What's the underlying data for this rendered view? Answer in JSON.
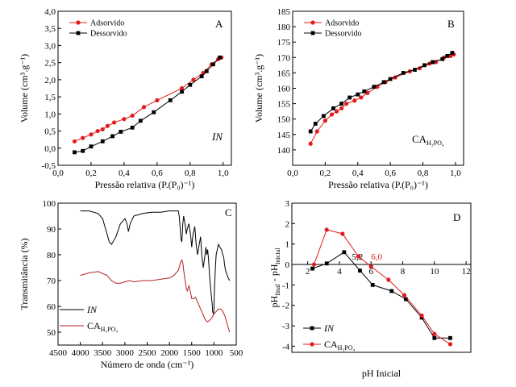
{
  "chart_data": [
    {
      "id": "A",
      "type": "line",
      "panel_letter": "A",
      "note": "IN",
      "ylabel_text": "Volume (cm³.g⁻¹)",
      "xlabel_text": "Pressão relativa (P.(P₀)⁻¹)",
      "xlim": [
        0,
        1.05
      ],
      "ylim": [
        -0.5,
        4.0
      ],
      "xticks": [
        "0,0",
        "0,2",
        "0,4",
        "0,6",
        "0,8",
        "1,0"
      ],
      "yticks": [
        "-0,5",
        "0,0",
        "0,5",
        "1,0",
        "1,5",
        "2,0",
        "2,5",
        "3,0",
        "3,5",
        "4,0"
      ],
      "legend": [
        "Adsorvido",
        "Dessorvido"
      ],
      "series": [
        {
          "name": "Adsorvido",
          "color": "#e41a1c",
          "marker": "circle",
          "x": [
            0.1,
            0.15,
            0.2,
            0.24,
            0.27,
            0.3,
            0.34,
            0.4,
            0.45,
            0.52,
            0.6,
            0.75,
            0.82,
            0.88,
            0.93,
            0.97,
            0.99
          ],
          "y": [
            0.2,
            0.3,
            0.4,
            0.5,
            0.55,
            0.65,
            0.75,
            0.85,
            0.95,
            1.2,
            1.4,
            1.75,
            2.0,
            2.2,
            2.45,
            2.6,
            2.65
          ]
        },
        {
          "name": "Dessorvido",
          "color": "#000000",
          "marker": "square",
          "x": [
            0.1,
            0.15,
            0.2,
            0.27,
            0.33,
            0.38,
            0.45,
            0.5,
            0.58,
            0.68,
            0.75,
            0.8,
            0.87,
            0.9,
            0.94,
            0.98
          ],
          "y": [
            -0.12,
            -0.08,
            0.05,
            0.2,
            0.35,
            0.48,
            0.6,
            0.8,
            1.05,
            1.4,
            1.65,
            1.85,
            2.1,
            2.25,
            2.45,
            2.65
          ]
        }
      ]
    },
    {
      "id": "B",
      "type": "line",
      "panel_letter": "B",
      "note": "CA",
      "note_sub": "H₃PO₄",
      "ylabel_text": "Volume (cm³.g⁻¹)",
      "xlabel_text": "Pressão relativa (P.(P₀)⁻¹)",
      "xlim": [
        0,
        1.05
      ],
      "ylim": [
        135,
        185
      ],
      "xticks": [
        "0,0",
        "0,2",
        "0,4",
        "0,6",
        "0,8",
        "1,0"
      ],
      "yticks": [
        "140",
        "145",
        "150",
        "155",
        "160",
        "165",
        "170",
        "175",
        "180",
        "185"
      ],
      "legend": [
        "Adsorvido",
        "Dessorvido"
      ],
      "series": [
        {
          "name": "Adsorvido",
          "color": "#e41a1c",
          "marker": "circle",
          "x": [
            0.11,
            0.15,
            0.2,
            0.24,
            0.27,
            0.3,
            0.33,
            0.38,
            0.42,
            0.46,
            0.52,
            0.57,
            0.63,
            0.72,
            0.78,
            0.84,
            0.88,
            0.93,
            0.97,
            0.99
          ],
          "y": [
            142.0,
            146.0,
            149.5,
            151.5,
            152.5,
            153.5,
            155.0,
            156.0,
            157.0,
            158.5,
            160.5,
            162.0,
            163.5,
            165.5,
            166.5,
            168.0,
            168.5,
            170.0,
            170.5,
            171.0
          ]
        },
        {
          "name": "Dessorvido",
          "color": "#000000",
          "marker": "square",
          "x": [
            0.11,
            0.14,
            0.19,
            0.25,
            0.3,
            0.35,
            0.4,
            0.44,
            0.5,
            0.56,
            0.6,
            0.68,
            0.75,
            0.81,
            0.86,
            0.92,
            0.95,
            0.98
          ],
          "y": [
            146.0,
            148.5,
            151.0,
            153.5,
            155.0,
            157.0,
            158.0,
            159.0,
            160.5,
            162.0,
            163.0,
            165.0,
            166.0,
            167.5,
            168.5,
            169.5,
            170.5,
            171.5
          ]
        }
      ]
    },
    {
      "id": "C",
      "type": "line",
      "panel_letter": "C",
      "ylabel_text": "Transmitância (%)",
      "xlabel_text": "Número de onda (cm⁻¹)",
      "xlim": [
        4500,
        500
      ],
      "ylim": [
        45,
        100
      ],
      "xticks": [
        "4500",
        "4000",
        "3500",
        "3000",
        "2500",
        "2000",
        "1500",
        "1000",
        "500"
      ],
      "yticks": [
        "50",
        "60",
        "70",
        "80",
        "90",
        "100"
      ],
      "legend": [
        "IN",
        "CA"
      ],
      "legend_sub": "H₃PO₄",
      "series": [
        {
          "name": "IN",
          "color": "#000000",
          "x": [
            4000,
            3800,
            3600,
            3500,
            3450,
            3400,
            3350,
            3300,
            3200,
            3100,
            3000,
            2950,
            2920,
            2880,
            2800,
            2600,
            2400,
            2200,
            2000,
            1900,
            1800,
            1780,
            1740,
            1720,
            1700,
            1680,
            1650,
            1620,
            1600,
            1560,
            1520,
            1500,
            1470,
            1430,
            1400,
            1370,
            1330,
            1300,
            1270,
            1240,
            1200,
            1180,
            1160,
            1140,
            1120,
            1100,
            1080,
            1060,
            1040,
            1030,
            1010,
            1000,
            990,
            970,
            950,
            900,
            870,
            830,
            800,
            780,
            760,
            740,
            720,
            700,
            680,
            650
          ],
          "y": [
            97.0,
            97.0,
            96.0,
            94.0,
            91.0,
            88.0,
            85.0,
            84.0,
            87.0,
            92.0,
            94.0,
            92.0,
            89.0,
            92.0,
            95.0,
            96.0,
            96.5,
            96.5,
            97.0,
            97.0,
            97.0,
            95.0,
            86.0,
            85.0,
            92.0,
            95.0,
            92.0,
            88.0,
            90.0,
            92.0,
            87.0,
            83.0,
            88.0,
            91.0,
            84.0,
            80.0,
            84.0,
            87.0,
            79.0,
            75.0,
            80.0,
            83.0,
            80.0,
            82.0,
            78.0,
            72.0,
            68.0,
            64.0,
            61.0,
            58.0,
            57.0,
            59.0,
            66.0,
            74.0,
            80.0,
            84.0,
            83.0,
            82.0,
            80.0,
            79.0,
            76.0,
            74.0,
            73.0,
            72.0,
            71.0,
            70.0
          ]
        },
        {
          "name": "CA",
          "color": "#b22222",
          "x": [
            4000,
            3800,
            3600,
            3400,
            3300,
            3200,
            3100,
            3000,
            2900,
            2800,
            2600,
            2400,
            2200,
            2000,
            1900,
            1800,
            1750,
            1720,
            1700,
            1680,
            1650,
            1620,
            1600,
            1560,
            1520,
            1500,
            1470,
            1450,
            1420,
            1400,
            1380,
            1350,
            1300,
            1250,
            1200,
            1150,
            1100,
            1050,
            1000,
            950,
            900,
            850,
            800,
            750,
            700,
            650
          ],
          "y": [
            72.0,
            73.0,
            73.5,
            72.0,
            70.0,
            69.0,
            69.0,
            69.5,
            70.0,
            69.5,
            70.0,
            70.0,
            70.5,
            71.0,
            72.0,
            74.0,
            77.0,
            78.0,
            77.0,
            74.0,
            70.0,
            67.0,
            66.0,
            68.0,
            65.0,
            63.0,
            63.0,
            63.0,
            63.5,
            63.0,
            62.0,
            61.0,
            59.0,
            57.0,
            55.0,
            54.0,
            54.5,
            55.5,
            57.0,
            58.0,
            59.0,
            59.0,
            58.0,
            56.0,
            53.0,
            50.0
          ]
        }
      ]
    },
    {
      "id": "D",
      "type": "line",
      "panel_letter": "D",
      "ylabel_text": "pH_final - pH_inicial",
      "xlabel_text": "pH Inicial",
      "xlim": [
        1,
        12.3
      ],
      "ylim": [
        -4.3,
        3.0
      ],
      "xticks": [
        "2",
        "4",
        "6",
        "8",
        "10",
        "12"
      ],
      "yticks": [
        "-4",
        "-3",
        "-2",
        "-1",
        "0",
        "1",
        "2",
        "3"
      ],
      "annotations": [
        {
          "text": "5,2",
          "x": 5.2,
          "color": "#000000"
        },
        {
          "text": "6,0",
          "x": 6.0,
          "color": "#e41a1c"
        }
      ],
      "legend": [
        "IN",
        "CA"
      ],
      "legend_sub": "H₃PO₄",
      "series": [
        {
          "name": "IN",
          "color": "#000000",
          "marker": "square",
          "x": [
            2.3,
            3.2,
            4.3,
            5.3,
            6.1,
            7.3,
            8.2,
            9.2,
            10.0,
            11.0
          ],
          "y": [
            -0.2,
            0.05,
            0.6,
            -0.3,
            -1.0,
            -1.3,
            -1.7,
            -2.6,
            -3.6,
            -3.6
          ]
        },
        {
          "name": "CA",
          "color": "#e41a1c",
          "marker": "circle",
          "x": [
            2.4,
            3.2,
            4.2,
            5.2,
            6.0,
            7.1,
            8.1,
            9.2,
            10.0,
            11.0
          ],
          "y": [
            0.0,
            1.7,
            1.5,
            0.4,
            -0.1,
            -0.75,
            -1.5,
            -2.5,
            -3.4,
            -3.9
          ]
        }
      ]
    }
  ]
}
